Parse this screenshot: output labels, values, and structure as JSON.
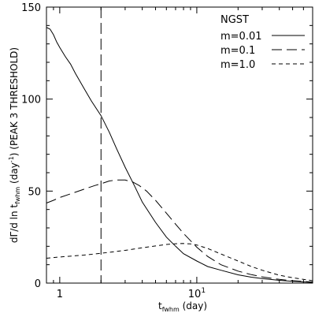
{
  "chart_data": {
    "type": "line",
    "xlabel_main": "t",
    "xlabel_sub": "fwhm",
    "xlabel_unit": "(day)",
    "ylabel_pre": "dΓ/d ln t",
    "ylabel_sub": "fwhm",
    "ylabel_unit_base": "(day",
    "ylabel_unit_sup": "-1",
    "ylabel_post": ") (PEAK 3 THRESHOLD)",
    "x_scale": "log",
    "xlim": [
      0.8,
      70
    ],
    "ylim": [
      0,
      150
    ],
    "x_tick_labels": [
      {
        "value": 1,
        "base": "1",
        "exp": ""
      },
      {
        "value": 10,
        "base": "10",
        "exp": "1"
      }
    ],
    "y_ticks": [
      0,
      50,
      100,
      150
    ],
    "grid": false,
    "legend_title": "NGST",
    "legend_position": "top-right",
    "vertical_marker_x": 2.0,
    "series": [
      {
        "name": "m=0.01",
        "dash": "solid",
        "x": [
          0.8,
          0.85,
          0.9,
          0.95,
          1.0,
          1.1,
          1.2,
          1.3,
          1.5,
          1.7,
          2.0,
          2.3,
          2.6,
          3.0,
          3.5,
          4.0,
          5.0,
          6.0,
          7.0,
          8.0,
          10,
          12,
          15,
          20,
          25,
          30,
          40,
          50,
          70
        ],
        "y": [
          139,
          138,
          135,
          131,
          128,
          123,
          119,
          114,
          106,
          99,
          91,
          82,
          73,
          63,
          53,
          44,
          33,
          25,
          20,
          16,
          12,
          9,
          7,
          4.5,
          3.2,
          2.5,
          1.5,
          1.0,
          0.4
        ]
      },
      {
        "name": "m=0.1",
        "dash": "long-dash",
        "x": [
          0.8,
          0.9,
          1.0,
          1.2,
          1.5,
          1.8,
          2.0,
          2.3,
          2.6,
          3.0,
          3.4,
          3.8,
          4.3,
          5.0,
          6.0,
          7.0,
          8.0,
          10,
          12,
          15,
          20,
          25,
          30,
          40,
          50,
          70
        ],
        "y": [
          43.5,
          45,
          46.5,
          48.5,
          51,
          53,
          54,
          55.5,
          56,
          56,
          55,
          53,
          50,
          45,
          38,
          32,
          27,
          19.5,
          14.5,
          10,
          6.5,
          4.6,
          3.4,
          2.0,
          1.3,
          0.6
        ]
      },
      {
        "name": "m=1.0",
        "dash": "short-dash",
        "x": [
          0.8,
          1.0,
          1.5,
          2.0,
          3.0,
          4.0,
          5.0,
          6.0,
          7.0,
          8.0,
          9.0,
          10,
          12,
          15,
          20,
          25,
          30,
          40,
          50,
          70
        ],
        "y": [
          13.5,
          14.2,
          15.2,
          16.2,
          17.8,
          19.2,
          20.2,
          21,
          21.4,
          21.5,
          21.3,
          20.7,
          18.8,
          15.8,
          12,
          9,
          7,
          4.3,
          2.9,
          1.3
        ]
      }
    ]
  }
}
